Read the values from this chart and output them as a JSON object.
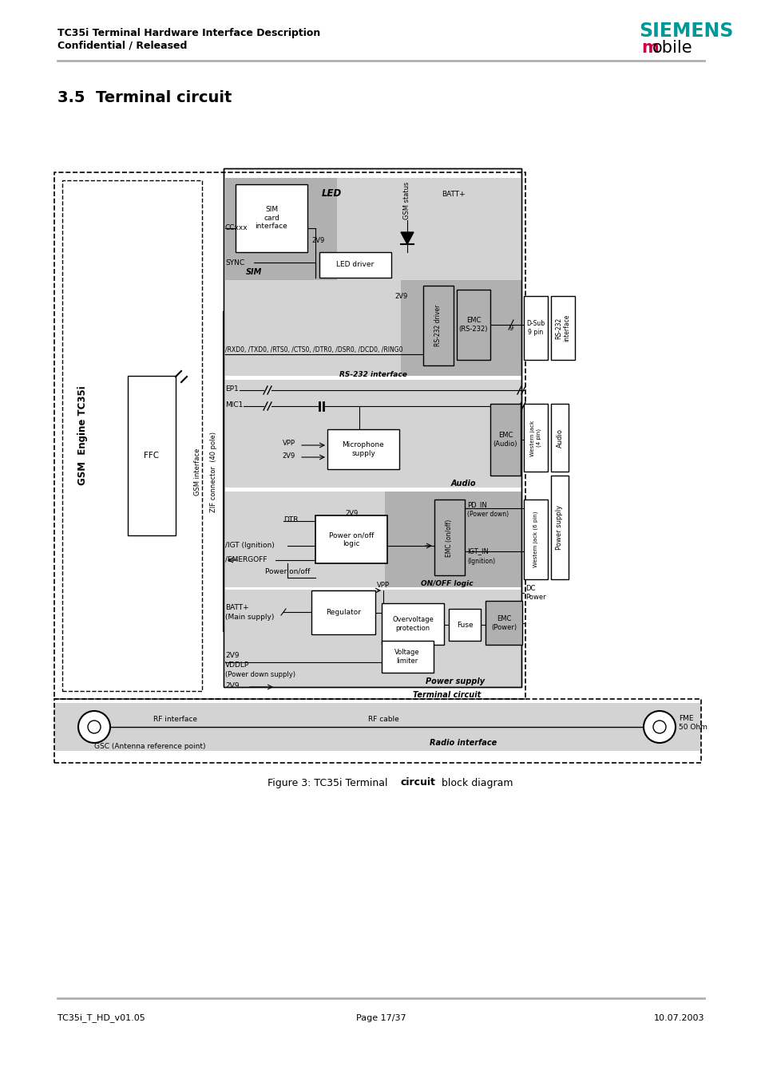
{
  "page_title_line1": "TC35i Terminal Hardware Interface Description",
  "page_title_line2": "Confidential / Released",
  "siemens_text": "SIEMENS",
  "mobile_text": "mobile",
  "section_title": "3.5  Terminal circuit",
  "footer_left": "TC35i_T_HD_v01.05",
  "footer_center": "Page 17/37",
  "footer_right": "10.07.2003",
  "bg_color": "#ffffff",
  "header_line_color": "#b0b0b0",
  "siemens_color": "#009999",
  "mobile_m_color": "#cc0044",
  "light_gray": "#d3d3d3",
  "medium_gray": "#b0b0b0",
  "dark_gray": "#888888",
  "white": "#ffffff"
}
